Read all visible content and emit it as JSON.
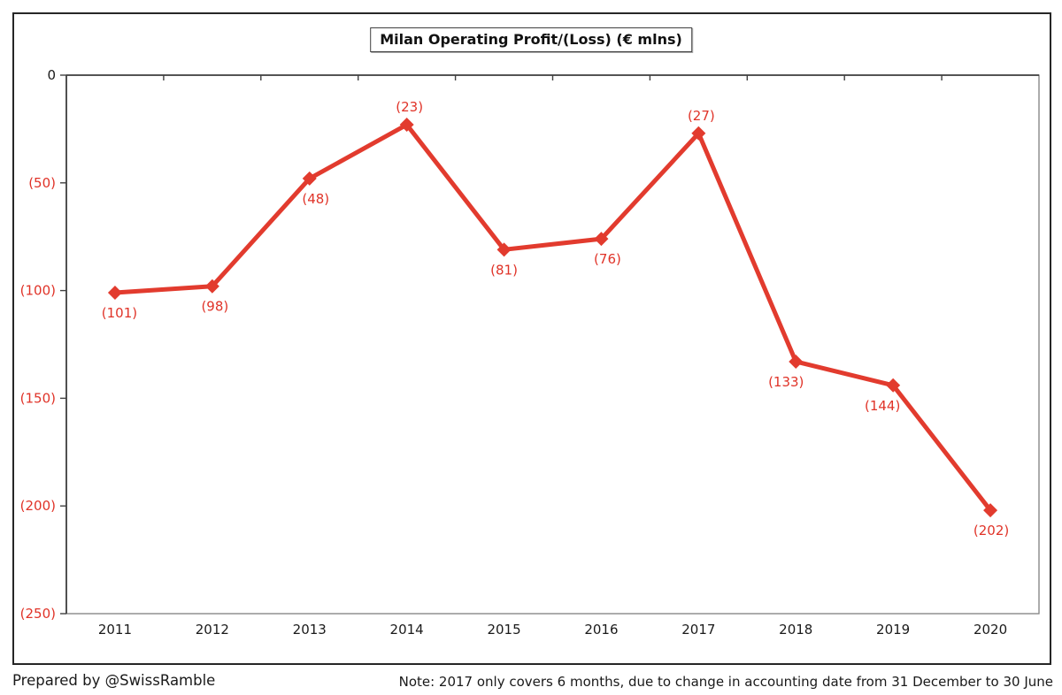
{
  "chart_data": {
    "type": "line",
    "title": "Milan Operating Profit/(Loss) (€ mlns)",
    "categories": [
      "2011",
      "2012",
      "2013",
      "2014",
      "2015",
      "2016",
      "2017",
      "2018",
      "2019",
      "2020"
    ],
    "values": [
      -101,
      -98,
      -48,
      -23,
      -81,
      -76,
      -27,
      -133,
      -144,
      -202
    ],
    "point_labels": [
      "(101)",
      "(98)",
      "(48)",
      "(23)",
      "(81)",
      "(76)",
      "(27)",
      "(133)",
      "(144)",
      "(202)"
    ],
    "label_positions": [
      "below",
      "below",
      "below",
      "above",
      "below",
      "below",
      "above",
      "below",
      "below",
      "below"
    ],
    "label_dx": [
      5,
      3,
      7,
      3,
      0,
      7,
      3,
      -11,
      -12,
      1
    ],
    "ylim": [
      -250,
      0
    ],
    "yticks": [
      0,
      -50,
      -100,
      -150,
      -200,
      -250
    ],
    "ytick_labels": [
      "0",
      "(50)",
      "(100)",
      "(150)",
      "(200)",
      "(250)"
    ],
    "xlabel": "",
    "ylabel": "",
    "grid": false,
    "legend": "none",
    "marker": "diamond",
    "line_color": "#e23b2e",
    "negative_label_color": "#e03328",
    "axis_text_color": "#1a1a1a",
    "axis_line_color": "#404040",
    "plot_border_color": "#808080"
  },
  "footer": {
    "credit": "Prepared by @SwissRamble",
    "note": "Note: 2017 only covers 6 months, due to change in accounting date from 31 December to 30 June"
  }
}
